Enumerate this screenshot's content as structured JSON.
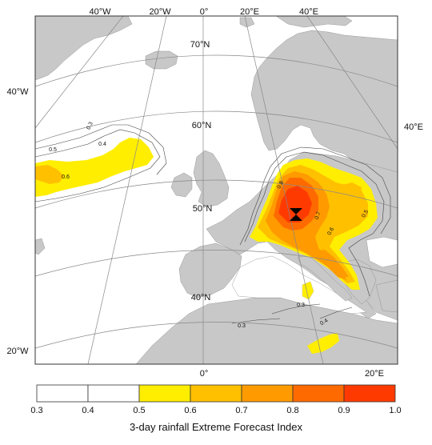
{
  "graticule": {
    "top": [
      "40°W",
      "20°W",
      "0°",
      "20°E",
      "40°E"
    ],
    "left": [
      "40°W",
      "20°W"
    ],
    "right": [
      "40°E"
    ],
    "lat": [
      "70°N",
      "60°N",
      "50°N",
      "40°N"
    ],
    "bottom": [
      "0°",
      "20°E"
    ]
  },
  "contours": [
    "0.3",
    "0.4",
    "0.5",
    "0.6",
    "0.8",
    "0.7",
    "0.6",
    "0.5",
    "0.3",
    "0.4",
    "0.3"
  ],
  "colorbar": {
    "ticks": [
      "0.3",
      "0.4",
      "0.5",
      "0.6",
      "0.7",
      "0.8",
      "0.9",
      "1.0"
    ],
    "colors": [
      "#ffffff",
      "#ffffff",
      "#ffee00",
      "#ffc000",
      "#ff9a00",
      "#ff6a00",
      "#ff3a00"
    ],
    "title": "3-day rainfall Extreme Forecast Index"
  },
  "colors": {
    "land": "#c8c8c8",
    "sea": "#ffffff",
    "efi_05": "#ffee00",
    "efi_06": "#ffc000",
    "efi_07": "#ff9a00",
    "efi_08": "#ff6a00",
    "efi_09": "#ff3a00",
    "marker": "#000000"
  },
  "marker": "hourglass-marker"
}
